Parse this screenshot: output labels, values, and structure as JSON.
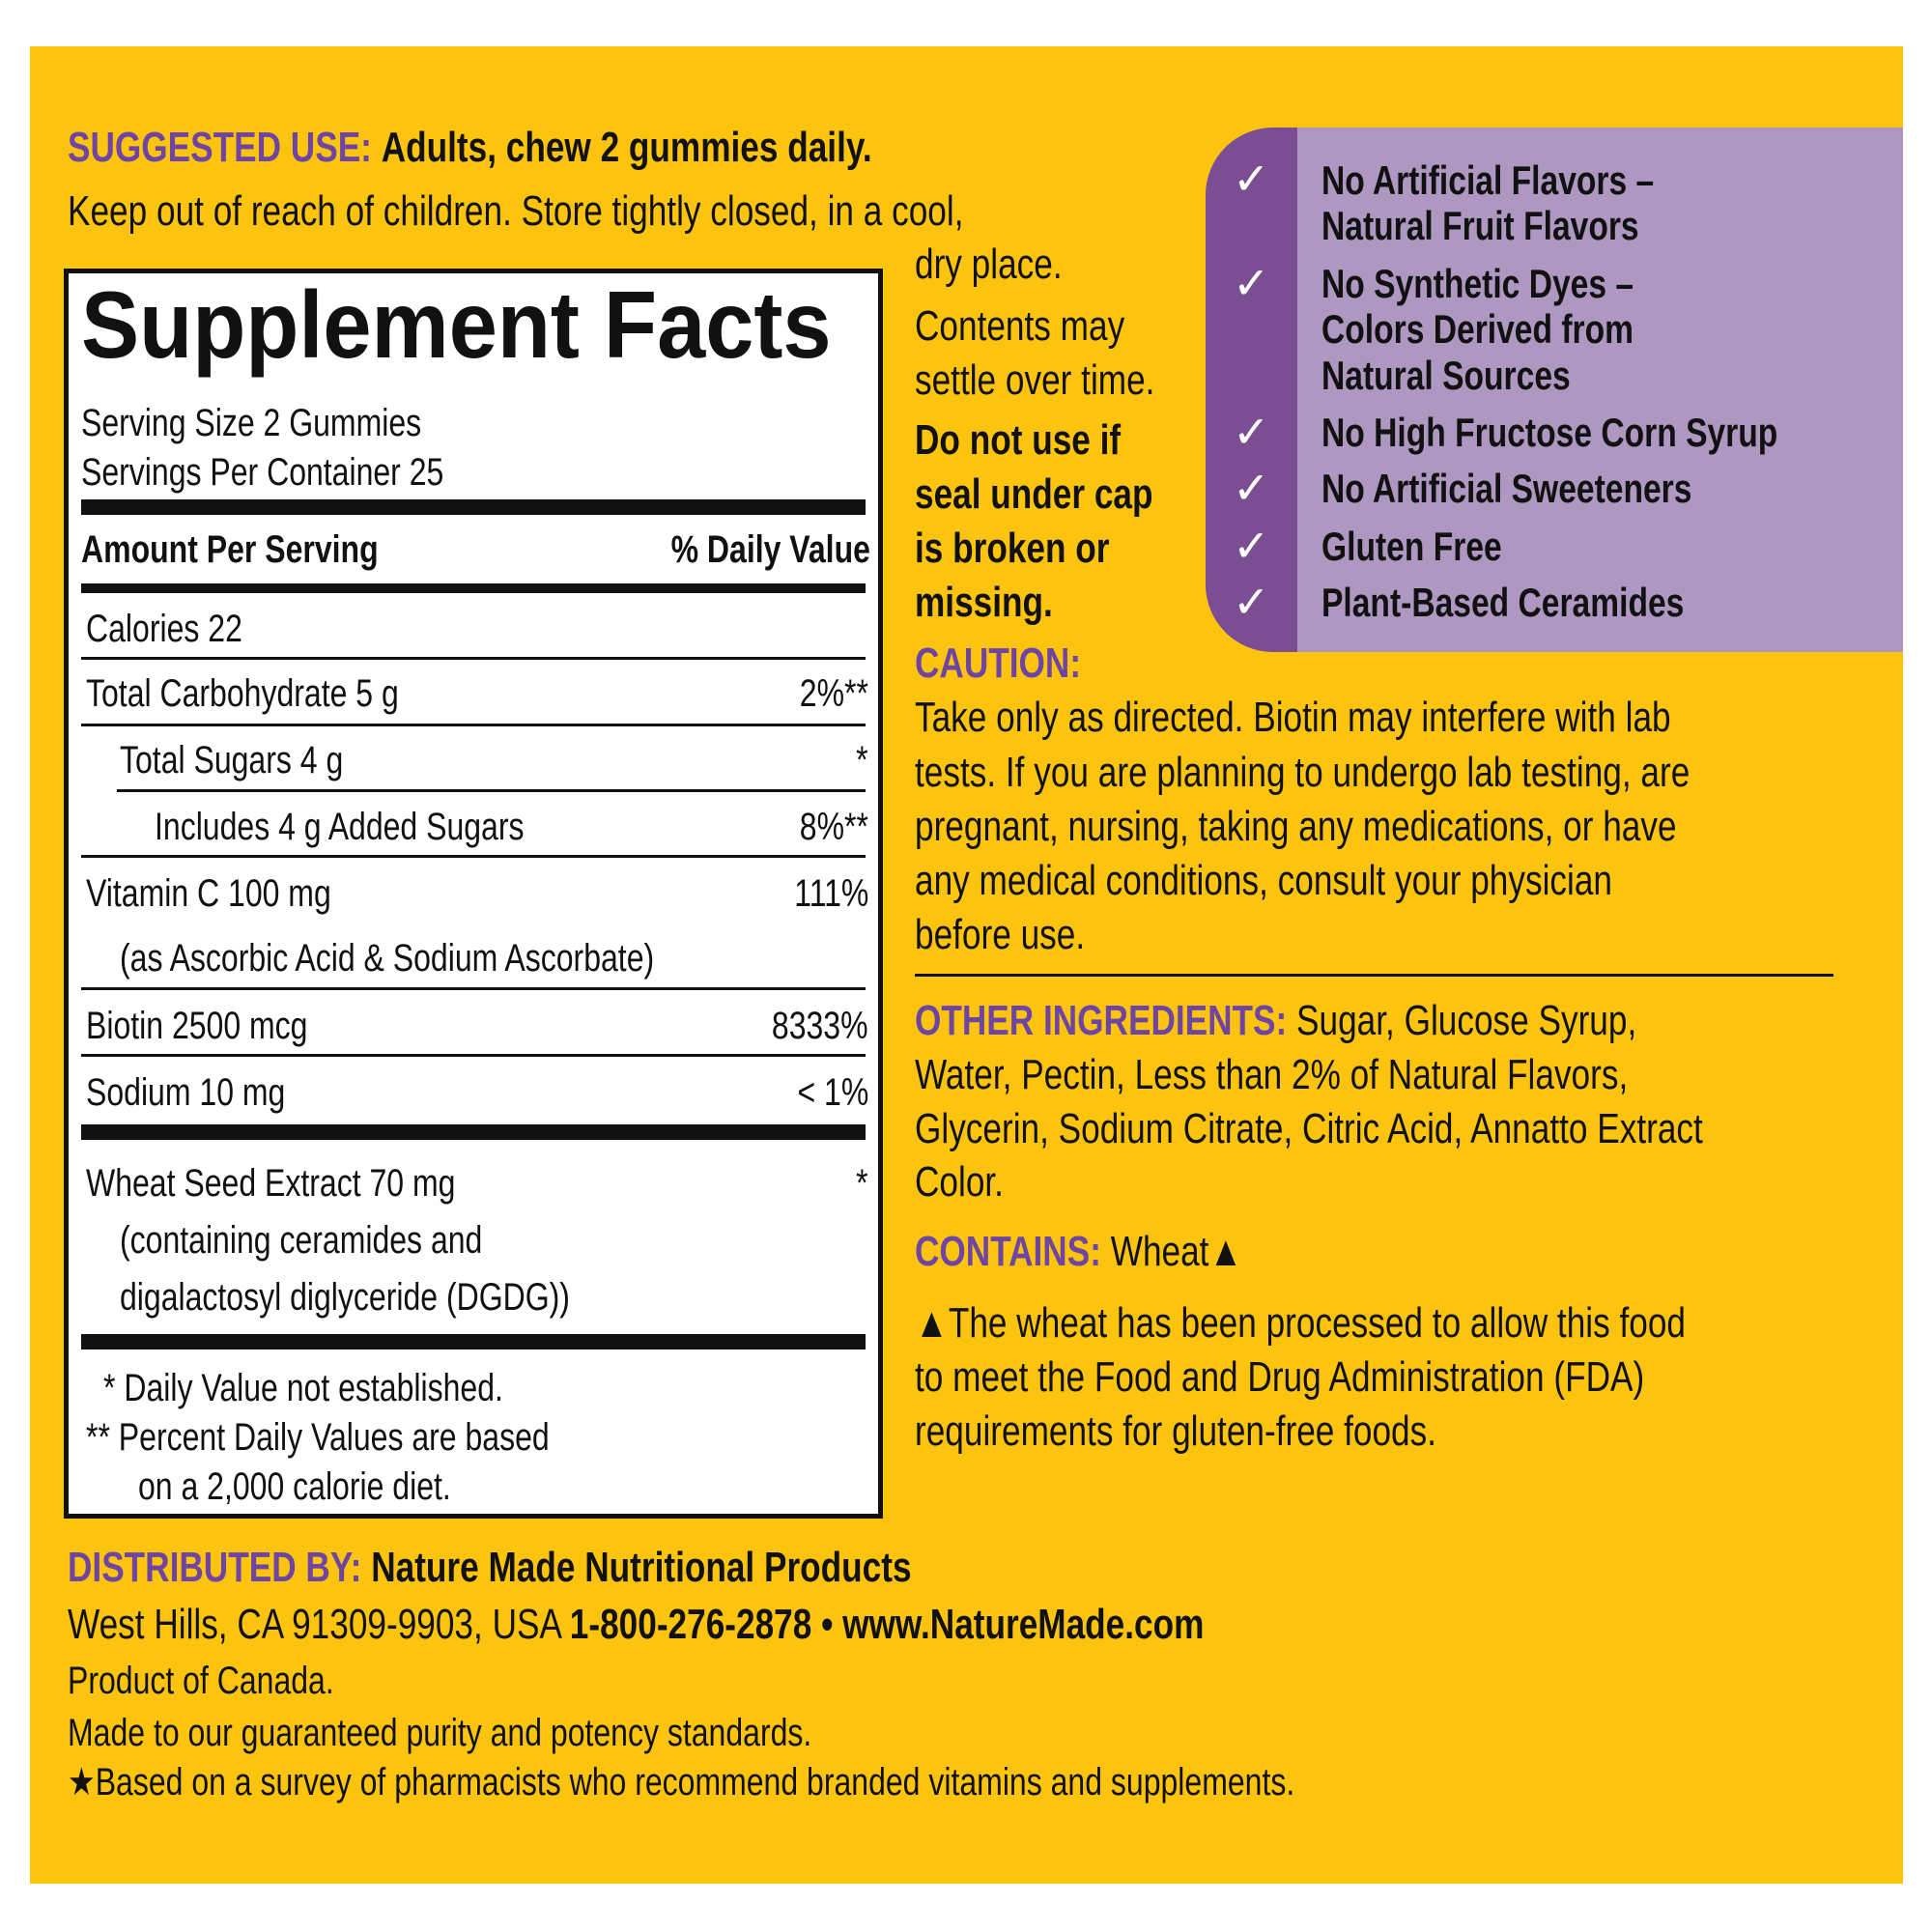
{
  "colors": {
    "background": "#FDC40F",
    "accent_purple": "#6E45A3",
    "panel_dark": "#7B4D93",
    "panel_light": "#AE97C1"
  },
  "suggested_use": {
    "label": "SUGGESTED USE:",
    "text": "Adults, chew 2 gummies daily.",
    "line2": "Keep out of reach of children. Store tightly closed, in a cool,"
  },
  "right_top": {
    "lines": [
      "dry place.",
      "Contents may",
      "settle over time."
    ],
    "warning_lines": [
      "Do not use if",
      "seal under cap",
      "is broken or",
      "missing."
    ]
  },
  "supplement_facts": {
    "title": "Supplement Facts",
    "serving_size": "Serving Size 2 Gummies",
    "servings_per_container": "Servings Per Container 25",
    "amount_header": "Amount Per Serving",
    "dv_header": "% Daily Value",
    "rows": [
      {
        "name": "Calories  22",
        "dv": ""
      },
      {
        "name": "Total Carbohydrate  5 g",
        "dv": "2%**"
      },
      {
        "name": "Total Sugars  4 g",
        "dv": "*"
      },
      {
        "name": "Includes  4 g Added Sugars",
        "dv": "8%**"
      },
      {
        "name": "Vitamin C  100 mg",
        "dv": "111%",
        "sub": "(as Ascorbic Acid & Sodium Ascorbate)"
      },
      {
        "name": "Biotin  2500 mcg",
        "dv": "8333%"
      },
      {
        "name": "Sodium  10 mg",
        "dv": "< 1%"
      },
      {
        "name": "Wheat Seed Extract  70 mg",
        "dv": "*",
        "sub": "(containing ceramides and",
        "sub2": "digalactosyl diglyceride (DGDG))"
      }
    ],
    "footnotes": [
      "*  Daily Value not established.",
      "**  Percent Daily Values are based",
      "on a 2,000 calorie diet."
    ]
  },
  "claims": [
    "No Artificial Flavors –",
    "Natural Fruit Flavors",
    "No Synthetic Dyes –",
    "Colors Derived from",
    "Natural Sources",
    "No High Fructose Corn Syrup",
    "No Artificial Sweeteners",
    "Gluten Free",
    "Plant-Based Ceramides"
  ],
  "check_icon": "✓",
  "caution": {
    "label": "CAUTION:",
    "lines": [
      "Take only as directed.  Biotin may interfere with lab",
      "tests. If you are planning to undergo lab testing, are",
      "pregnant, nursing, taking any medications, or have",
      "any medical conditions, consult your physician",
      "before use."
    ]
  },
  "other_ingredients": {
    "label": "OTHER INGREDIENTS:",
    "first": "Sugar, Glucose Syrup,",
    "lines": [
      "Water, Pectin, Less than 2% of Natural Flavors,",
      "Glycerin, Sodium Citrate, Citric Acid, Annatto Extract",
      "Color."
    ]
  },
  "contains": {
    "label": "CONTAINS:",
    "text": "Wheat▲"
  },
  "wheat_note": [
    "▲The wheat has been processed to allow  this food",
    "to meet the Food and Drug Administration (FDA)",
    "requirements for gluten-free foods."
  ],
  "distributed": {
    "label": "DISTRIBUTED BY:",
    "company": "Nature Made Nutritional Products",
    "address": "West Hills, CA 91309-9903, USA ",
    "phone_web": "1-800-276-2878 • www.NatureMade.com",
    "lines": [
      "Product of Canada.",
      "Made to our guaranteed purity and potency standards.",
      "★Based on a survey of pharmacists who recommend branded vitamins and supplements."
    ]
  }
}
